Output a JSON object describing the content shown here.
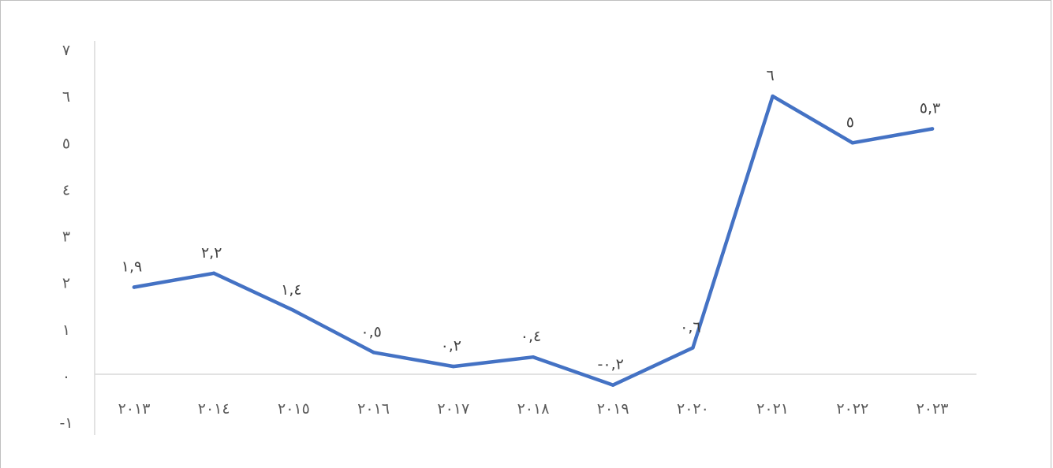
{
  "chart_data": {
    "type": "line",
    "title": "",
    "xlabel": "",
    "ylabel": "",
    "categories": [
      "٢٠١٣",
      "٢٠١٤",
      "٢٠١٥",
      "٢٠١٦",
      "٢٠١٧",
      "٢٠١٨",
      "٢٠١٩",
      "٢٠٢٠",
      "٢٠٢١",
      "٢٠٢٢",
      "٢٠٢٣"
    ],
    "x": [
      2013,
      2014,
      2015,
      2016,
      2017,
      2018,
      2019,
      2020,
      2021,
      2022,
      2023
    ],
    "series": [
      {
        "values": [
          1.9,
          2.2,
          1.4,
          0.5,
          0.2,
          0.4,
          -0.2,
          0.6,
          6,
          5,
          5.3
        ],
        "data_labels": [
          "١,٩",
          "٢,٢",
          "١,٤",
          "٠,٥",
          "٠,٢",
          "٠,٤",
          "-٠,٢",
          "٠,٦",
          "٦",
          "٥",
          "٥,٣"
        ],
        "color": "#4472c4"
      }
    ],
    "ylim": [
      -1,
      7
    ],
    "yticks": [
      -1,
      0,
      1,
      2,
      3,
      4,
      5,
      6,
      7
    ],
    "ytick_labels": [
      "-١",
      "٠",
      "١",
      "٢",
      "٣",
      "٤",
      "٥",
      "٦",
      "٧"
    ],
    "grid": false,
    "legend": "none"
  }
}
